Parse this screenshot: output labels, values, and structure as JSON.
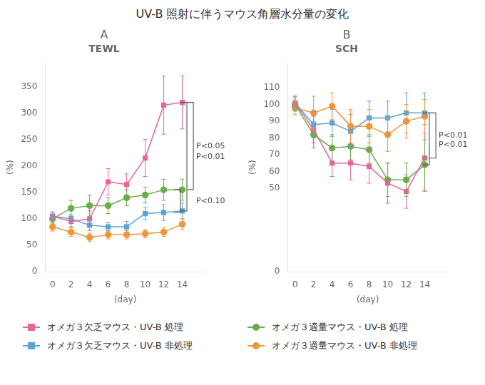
{
  "title": "UV-B 照射に伴うマウス角層水分量の変化",
  "chart_data": [
    {
      "type": "line",
      "title": "A",
      "subtitle": "TEWL",
      "xlabel": "(day)",
      "ylabel": "(%)",
      "x": [
        0,
        2,
        4,
        6,
        8,
        10,
        12,
        14
      ],
      "series": [
        {
          "name": "オメガ３欠乏マウス・UV-B 処理",
          "color": "#E8659A",
          "marker": "square",
          "values": [
            105,
            95,
            100,
            170,
            165,
            215,
            315,
            320
          ],
          "errors": [
            8,
            10,
            15,
            25,
            20,
            35,
            55,
            50
          ]
        },
        {
          "name": "オメガ３適量マウス・UV-B 処理",
          "color": "#6BAD4B",
          "marker": "circle",
          "values": [
            100,
            120,
            125,
            125,
            140,
            145,
            155,
            155
          ],
          "errors": [
            8,
            15,
            20,
            15,
            15,
            15,
            20,
            20
          ]
        },
        {
          "name": "オメガ３欠乏マウス・UV-B 非処理",
          "color": "#5BA3D9",
          "marker": "square",
          "values": [
            105,
            100,
            88,
            85,
            85,
            110,
            112,
            115
          ],
          "errors": [
            8,
            8,
            10,
            8,
            10,
            12,
            15,
            15
          ]
        },
        {
          "name": "オメガ３適量マウス・UV-B 非処理",
          "color": "#F0963A",
          "marker": "circle",
          "values": [
            85,
            75,
            65,
            70,
            70,
            72,
            75,
            90
          ],
          "errors": [
            8,
            8,
            8,
            8,
            8,
            8,
            8,
            10
          ]
        }
      ],
      "xlim": [
        -0.8,
        16.5
      ],
      "xticks": [
        0,
        2,
        4,
        6,
        8,
        10,
        12,
        14
      ],
      "ylim": [
        0,
        395
      ],
      "yticks": [
        0,
        50,
        100,
        150,
        200,
        250,
        300,
        350
      ],
      "grid": false,
      "legend": "bottom",
      "annotations": [
        {
          "text": "P<0.05",
          "y": [
            320,
            155
          ]
        },
        {
          "text": "P<0.01",
          "y": [
            320,
            115
          ]
        },
        {
          "text": "P<0.10",
          "y": [
            155,
            112
          ]
        }
      ]
    },
    {
      "type": "line",
      "title": "B",
      "subtitle": "SCH",
      "xlabel": "(day)",
      "ylabel": "(%)",
      "x": [
        0,
        2,
        4,
        6,
        8,
        10,
        12,
        14
      ],
      "series": [
        {
          "name": "オメガ３欠乏マウス・UV-B 処理",
          "color": "#E8659A",
          "marker": "square",
          "values": [
            101,
            85,
            65,
            65,
            63,
            53,
            48,
            68
          ],
          "errors": [
            4,
            8,
            8,
            10,
            10,
            12,
            10,
            20
          ]
        },
        {
          "name": "オメガ３適量マウス・UV-B 処理",
          "color": "#6BAD4B",
          "marker": "circle",
          "values": [
            100,
            82,
            74,
            75,
            73,
            55,
            55,
            64
          ],
          "errors": [
            4,
            8,
            8,
            8,
            8,
            10,
            10,
            15
          ]
        },
        {
          "name": "オメガ３欠乏マウス・UV-B 非処理",
          "color": "#5BA3D9",
          "marker": "square",
          "values": [
            101,
            88,
            89,
            84,
            92,
            92,
            95,
            95
          ],
          "errors": [
            4,
            8,
            8,
            10,
            10,
            10,
            12,
            12
          ]
        },
        {
          "name": "オメガ３適量マウス・UV-B 非処理",
          "color": "#F0963A",
          "marker": "circle",
          "values": [
            98,
            95,
            99,
            87,
            87,
            82,
            90,
            93
          ],
          "errors": [
            4,
            10,
            8,
            10,
            10,
            10,
            10,
            10
          ]
        }
      ],
      "xlim": [
        -0.8,
        16.5
      ],
      "xticks": [
        0,
        2,
        4,
        6,
        8,
        10,
        12,
        14
      ],
      "ylim": [
        0,
        125
      ],
      "yticks": [
        0,
        50,
        60,
        70,
        80,
        90,
        100,
        110
      ],
      "grid": false,
      "annotations": [
        {
          "text": "P<0.01",
          "y": [
            95,
            68
          ]
        },
        {
          "text": "P<0.01",
          "y": [
            95,
            64
          ]
        }
      ]
    }
  ]
}
